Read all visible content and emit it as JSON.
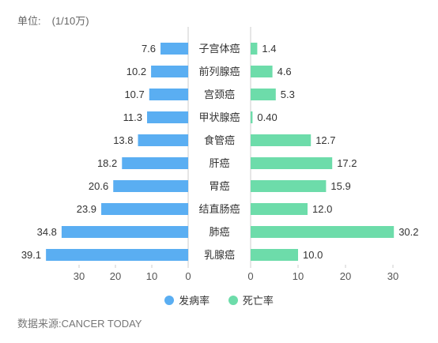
{
  "unit_label": "单位:",
  "unit_value": "(1/10万)",
  "source": "数据来源:CANCER TODAY",
  "colors": {
    "incidence": "#5aaef2",
    "mortality": "#6ddcaa"
  },
  "chart_data": {
    "type": "bar",
    "orientation": "horizontal-butterfly",
    "categories": [
      "子宫体癌",
      "前列腺癌",
      "宫颈癌",
      "甲状腺癌",
      "食管癌",
      "肝癌",
      "胃癌",
      "结直肠癌",
      "肺癌",
      "乳腺癌"
    ],
    "series": [
      {
        "name": "发病率",
        "values": [
          7.6,
          10.2,
          10.7,
          11.3,
          13.8,
          18.2,
          20.6,
          23.9,
          34.8,
          39.1
        ],
        "labels": [
          "7.6",
          "10.2",
          "10.7",
          "11.3",
          "13.8",
          "18.2",
          "20.6",
          "23.9",
          "34.8",
          "39.1"
        ]
      },
      {
        "name": "死亡率",
        "values": [
          1.4,
          4.6,
          5.3,
          0.4,
          12.7,
          17.2,
          15.9,
          12.0,
          30.2,
          10.0
        ],
        "labels": [
          "1.4",
          "4.6",
          "5.3",
          "0.40",
          "12.7",
          "17.2",
          "15.9",
          "12.0",
          "30.2",
          "10.0"
        ]
      }
    ],
    "left_axis": {
      "ticks": [
        30,
        20,
        10,
        0
      ]
    },
    "right_axis": {
      "ticks": [
        0,
        10,
        20,
        30
      ]
    },
    "legend": "bottom"
  }
}
